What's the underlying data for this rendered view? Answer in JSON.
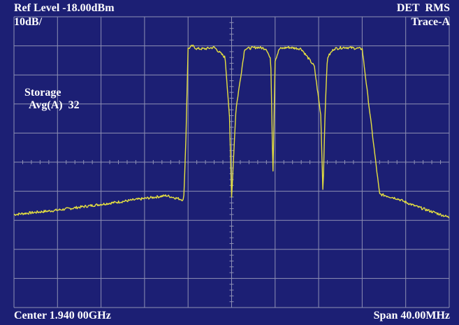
{
  "header": {
    "ref_level": "Ref Level -18.00dBm",
    "detector": "DET  RMS",
    "scale": "10dB/",
    "trace": "Trace-A"
  },
  "overlay": {
    "storage_label": "Storage",
    "avg_label": "Avg(A)  32"
  },
  "footer": {
    "center": "Center 1.940 00GHz",
    "span": "Span 40.00MHz"
  },
  "colors": {
    "background": "#1c1f74",
    "grid": "#8e90b4",
    "trace": "#e6e040",
    "text": "#ffffff"
  },
  "chart_data": {
    "type": "line",
    "x_unit": "GHz",
    "x_center": 1.94,
    "x_span_mhz": 40,
    "y_unit": "dBm",
    "y_ref": -18.0,
    "y_scale_db_per_div": 10,
    "y_divisions": 10,
    "x_divisions": 10,
    "grid": true,
    "series": [
      {
        "x_div": [
          0.0,
          1.0,
          2.0,
          3.0,
          3.5,
          3.9,
          3.95,
          4.0,
          4.1,
          4.2,
          4.4,
          4.6,
          4.85,
          4.95,
          5.0,
          5.1,
          5.3,
          5.6,
          5.8,
          5.9,
          5.95,
          6.0,
          6.1,
          6.3,
          6.6,
          6.9,
          7.05,
          7.1,
          7.15,
          7.2,
          7.35,
          7.6,
          8.0,
          8.4,
          8.8,
          9.2,
          10.0
        ],
        "y_dbm": [
          -86,
          -84.5,
          -82.5,
          -80.5,
          -79.5,
          -81,
          -60,
          -29,
          -28,
          -29,
          -29,
          -28.5,
          -32,
          -52,
          -80,
          -50,
          -29,
          -28.5,
          -29,
          -33,
          -72,
          -33,
          -29,
          -28.5,
          -29,
          -35,
          -52,
          -79,
          -50,
          -32,
          -29,
          -28.5,
          -29,
          -79,
          -80.5,
          -83,
          -87
        ]
      }
    ]
  }
}
